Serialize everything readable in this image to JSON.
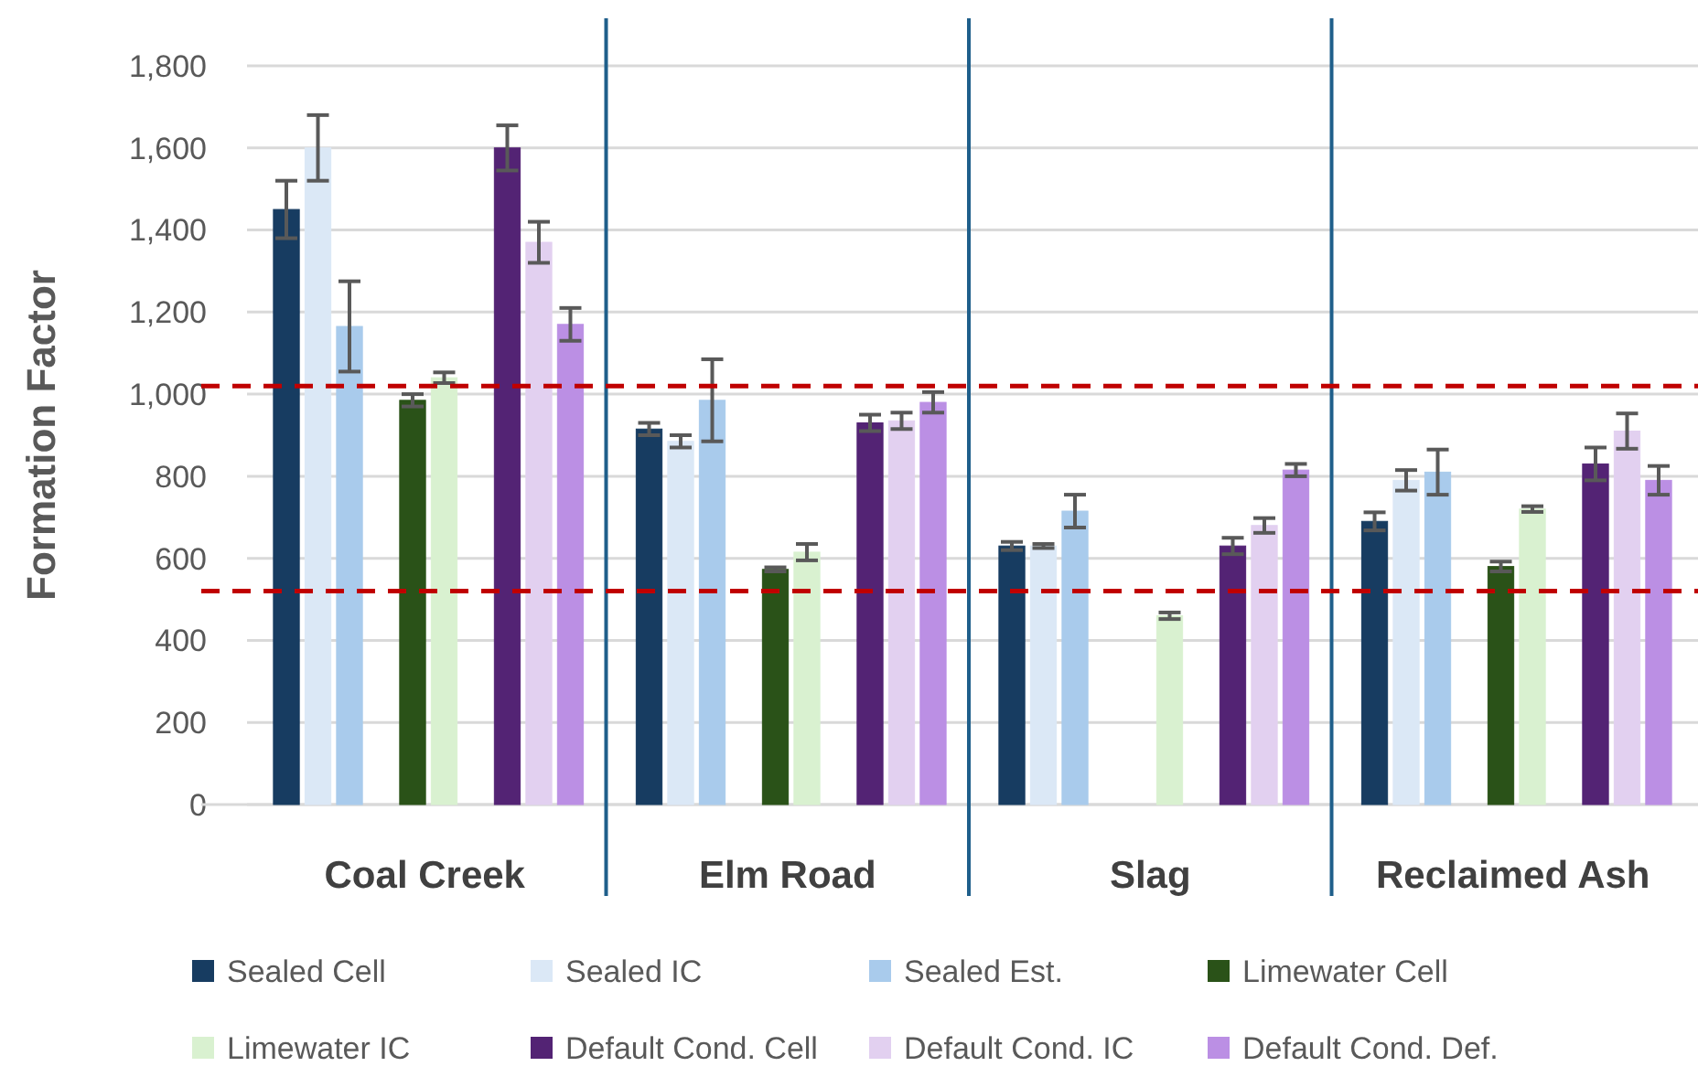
{
  "chart_data": {
    "type": "bar",
    "ylabel": "Formation Factor",
    "categories": [
      "Coal Creek",
      "Elm Road",
      "Slag",
      "Reclaimed Ash"
    ],
    "ylim": [
      0,
      1800
    ],
    "yticks": [
      0,
      200,
      400,
      600,
      800,
      {
        "value": 1000,
        "label": "1,000"
      },
      {
        "value": 1200,
        "label": "1,200"
      },
      {
        "value": 1400,
        "label": "1,400"
      },
      {
        "value": 1600,
        "label": "1,600"
      },
      {
        "value": 1800,
        "label": "1,800"
      }
    ],
    "grid": "y",
    "legend": "bottom",
    "ref_lines": [
      {
        "axis": "y",
        "value": 1020,
        "color": "#c00000",
        "line_style": "dashed"
      },
      {
        "axis": "y",
        "value": 520,
        "color": "#c00000",
        "line_style": "dashed"
      }
    ],
    "series": [
      {
        "name": "Sealed Cell",
        "color": "#173c61",
        "values": [
          1450,
          915,
          630,
          690
        ],
        "errors": [
          70,
          15,
          10,
          22
        ]
      },
      {
        "name": "Sealed IC",
        "color": "#dbe8f6",
        "values": [
          1600,
          885,
          630,
          790
        ],
        "errors": [
          80,
          15,
          5,
          25
        ]
      },
      {
        "name": "Sealed Est.",
        "color": "#a9cbec",
        "values": [
          1165,
          985,
          715,
          810
        ],
        "errors": [
          110,
          100,
          40,
          55
        ]
      },
      {
        "name": "Limewater Cell",
        "color": "#2a5218",
        "values": [
          985,
          573,
          null,
          580
        ],
        "errors": [
          15,
          5,
          null,
          12
        ]
      },
      {
        "name": "Limewater IC",
        "color": "#d9f1d0",
        "values": [
          1040,
          615,
          460,
          720
        ],
        "errors": [
          13,
          20,
          8,
          7
        ]
      },
      {
        "name": "Default Cond. Cell",
        "color": "#532374",
        "values": [
          1600,
          930,
          630,
          830
        ],
        "errors": [
          55,
          20,
          20,
          40
        ]
      },
      {
        "name": "Default Cond. IC",
        "color": "#e2d0f0",
        "values": [
          1370,
          935,
          680,
          910
        ],
        "errors": [
          50,
          20,
          18,
          43
        ]
      },
      {
        "name": "Default Cond. Def.",
        "color": "#bb8fe4",
        "values": [
          1170,
          980,
          815,
          790
        ],
        "errors": [
          40,
          25,
          15,
          35
        ]
      }
    ]
  }
}
